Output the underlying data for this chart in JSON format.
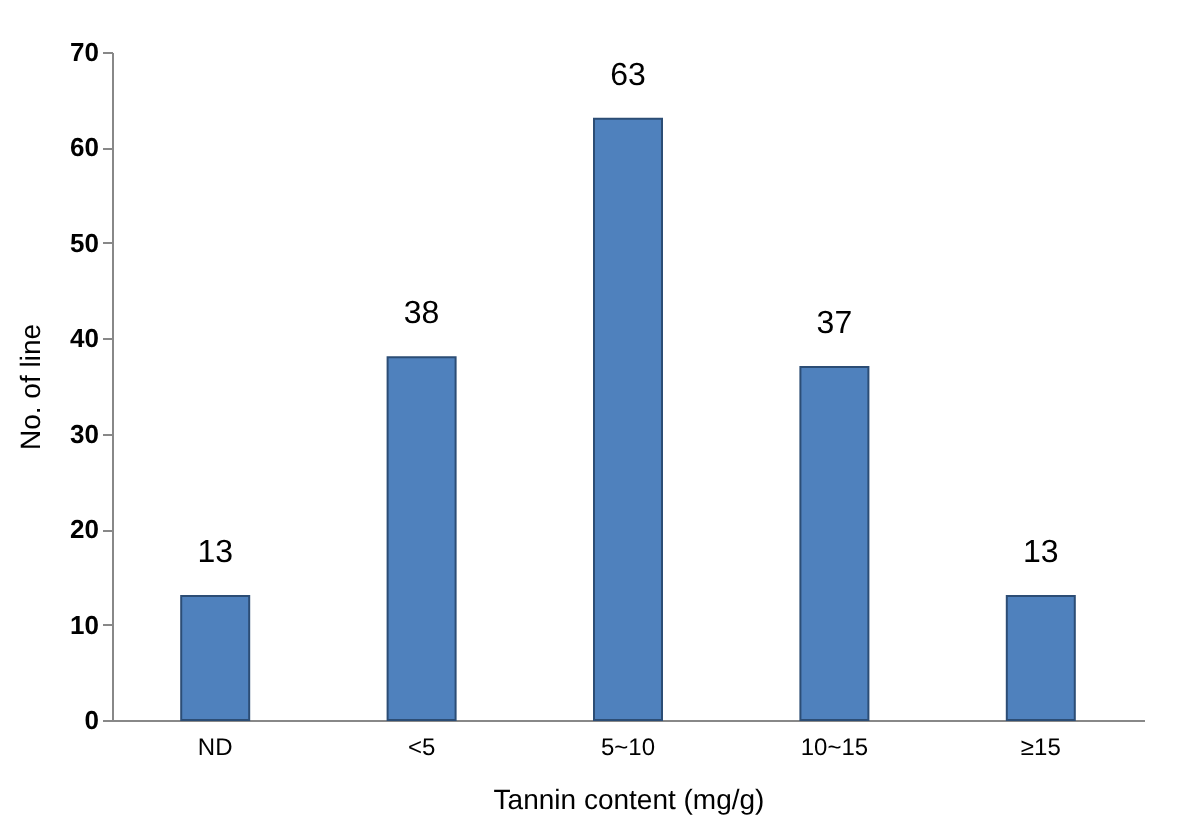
{
  "chart_data": {
    "type": "bar",
    "xlabel": "Tannin content  (mg/g)",
    "ylabel": "No. of line",
    "categories": [
      "ND",
      "<5",
      "5~10",
      "10~15",
      "≥15"
    ],
    "values": [
      13,
      38,
      63,
      37,
      13
    ],
    "color": "#4f81bd",
    "ylim": [
      0,
      70
    ],
    "yticks": [
      0,
      10,
      20,
      30,
      40,
      50,
      60,
      70
    ],
    "grid": false,
    "data_labels": true
  }
}
